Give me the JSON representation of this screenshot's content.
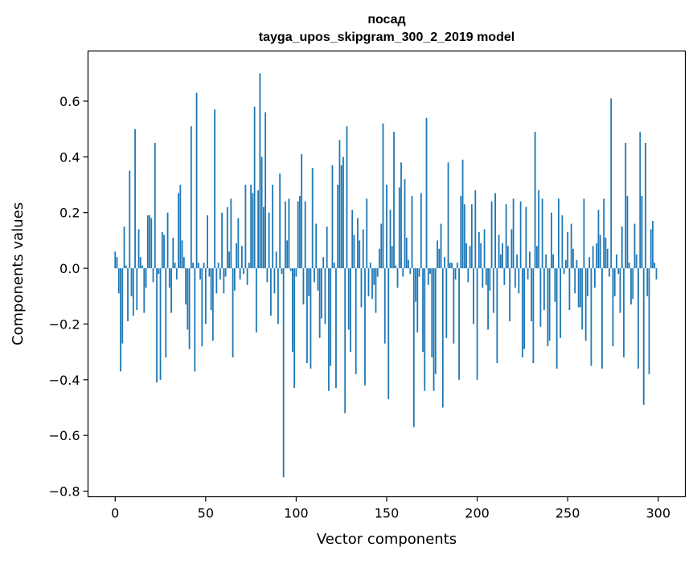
{
  "colors": {
    "bar": "#1f77b4",
    "axes": "#000000",
    "background": "#ffffff"
  },
  "chart_data": {
    "type": "bar",
    "title": "посад",
    "subtitle": "tayga_upos_skipgram_300_2_2019 model",
    "xlabel": "Vector components",
    "ylabel": "Components values",
    "xlim": [
      -15,
      315
    ],
    "ylim": [
      -0.82,
      0.78
    ],
    "xticks": [
      0,
      50,
      100,
      150,
      200,
      250,
      300
    ],
    "xtick_labels": [
      "0",
      "50",
      "100",
      "150",
      "200",
      "250",
      "300"
    ],
    "yticks": [
      -0.8,
      -0.6,
      -0.4,
      -0.2,
      0.0,
      0.2,
      0.4,
      0.6
    ],
    "ytick_labels": [
      "−0.8",
      "−0.6",
      "−0.4",
      "−0.2",
      "0.0",
      "0.2",
      "0.4",
      "0.6"
    ],
    "grid": false,
    "legend": "none",
    "x": "0..299 (component index)",
    "values": [
      0.06,
      0.04,
      -0.09,
      -0.37,
      -0.27,
      0.15,
      0.01,
      -0.19,
      0.35,
      -0.1,
      -0.17,
      0.5,
      -0.15,
      0.14,
      0.04,
      0.01,
      -0.16,
      -0.07,
      0.19,
      0.19,
      0.18,
      -0.05,
      0.45,
      -0.41,
      -0.02,
      -0.4,
      0.13,
      0.12,
      -0.32,
      0.2,
      -0.07,
      -0.16,
      0.11,
      0.02,
      -0.04,
      0.27,
      0.3,
      0.1,
      0.04,
      -0.13,
      -0.22,
      -0.29,
      0.51,
      0.02,
      -0.37,
      0.63,
      0.02,
      -0.04,
      -0.28,
      0.02,
      -0.2,
      0.19,
      -0.03,
      -0.15,
      -0.26,
      0.57,
      -0.09,
      0.02,
      -0.04,
      0.2,
      -0.09,
      -0.03,
      0.22,
      0.06,
      0.25,
      -0.32,
      -0.08,
      0.09,
      0.18,
      -0.04,
      0.08,
      -0.02,
      0.3,
      -0.06,
      0.02,
      0.3,
      0.27,
      0.58,
      -0.23,
      0.28,
      0.7,
      0.4,
      0.22,
      0.56,
      -0.05,
      0.2,
      -0.17,
      0.3,
      -0.09,
      0.06,
      -0.2,
      0.34,
      -0.02,
      -0.75,
      0.24,
      0.1,
      0.25,
      -0.01,
      -0.3,
      -0.43,
      -0.03,
      0.24,
      0.26,
      0.41,
      -0.13,
      0.24,
      -0.34,
      -0.1,
      -0.36,
      0.36,
      -0.05,
      0.16,
      -0.08,
      -0.25,
      -0.18,
      0.04,
      -0.2,
      0.15,
      -0.44,
      -0.35,
      0.37,
      0.02,
      -0.43,
      0.3,
      0.46,
      0.37,
      0.4,
      -0.52,
      0.51,
      -0.22,
      -0.3,
      0.21,
      0.12,
      -0.38,
      0.18,
      0.1,
      -0.14,
      0.14,
      -0.42,
      0.25,
      -0.1,
      0.02,
      -0.11,
      -0.06,
      -0.16,
      -0.03,
      0.07,
      0.16,
      0.52,
      -0.27,
      0.3,
      -0.47,
      0.21,
      0.08,
      0.49,
      0.01,
      -0.07,
      0.29,
      0.38,
      -0.03,
      0.32,
      0.11,
      0.03,
      -0.02,
      0.26,
      -0.57,
      -0.12,
      -0.23,
      -0.03,
      0.27,
      -0.3,
      -0.44,
      0.54,
      -0.06,
      -0.02,
      -0.32,
      -0.44,
      -0.38,
      0.1,
      0.07,
      0.16,
      -0.5,
      0.04,
      -0.25,
      0.38,
      0.02,
      0.02,
      -0.27,
      -0.04,
      0.02,
      -0.4,
      0.26,
      0.39,
      0.23,
      0.09,
      -0.05,
      0.08,
      0.23,
      -0.2,
      0.28,
      -0.4,
      0.13,
      0.09,
      -0.07,
      0.14,
      -0.06,
      -0.22,
      -0.08,
      0.24,
      -0.16,
      0.27,
      -0.34,
      0.12,
      0.05,
      0.09,
      -0.06,
      0.23,
      0.08,
      -0.19,
      0.14,
      0.25,
      -0.07,
      0.05,
      -0.09,
      0.24,
      -0.32,
      -0.29,
      0.22,
      -0.04,
      0.06,
      -0.19,
      -0.34,
      0.49,
      0.08,
      0.28,
      -0.21,
      0.25,
      -0.15,
      0.05,
      -0.28,
      -0.26,
      0.2,
      0.05,
      -0.12,
      -0.36,
      0.25,
      -0.25,
      0.19,
      -0.02,
      0.03,
      0.13,
      -0.15,
      0.16,
      0.07,
      -0.09,
      0.03,
      -0.14,
      -0.14,
      -0.22,
      0.25,
      -0.26,
      -0.1,
      0.04,
      -0.35,
      0.08,
      -0.07,
      0.09,
      0.21,
      0.12,
      -0.36,
      0.25,
      0.11,
      0.07,
      -0.03,
      0.61,
      -0.28,
      -0.1,
      0.05,
      -0.02,
      -0.16,
      0.15,
      -0.32,
      0.45,
      0.26,
      0.02,
      -0.13,
      -0.11,
      0.16,
      0.05,
      -0.36,
      0.49,
      0.26,
      -0.49,
      0.45,
      -0.1,
      -0.38,
      0.14,
      0.17,
      0.02,
      -0.04
    ]
  }
}
